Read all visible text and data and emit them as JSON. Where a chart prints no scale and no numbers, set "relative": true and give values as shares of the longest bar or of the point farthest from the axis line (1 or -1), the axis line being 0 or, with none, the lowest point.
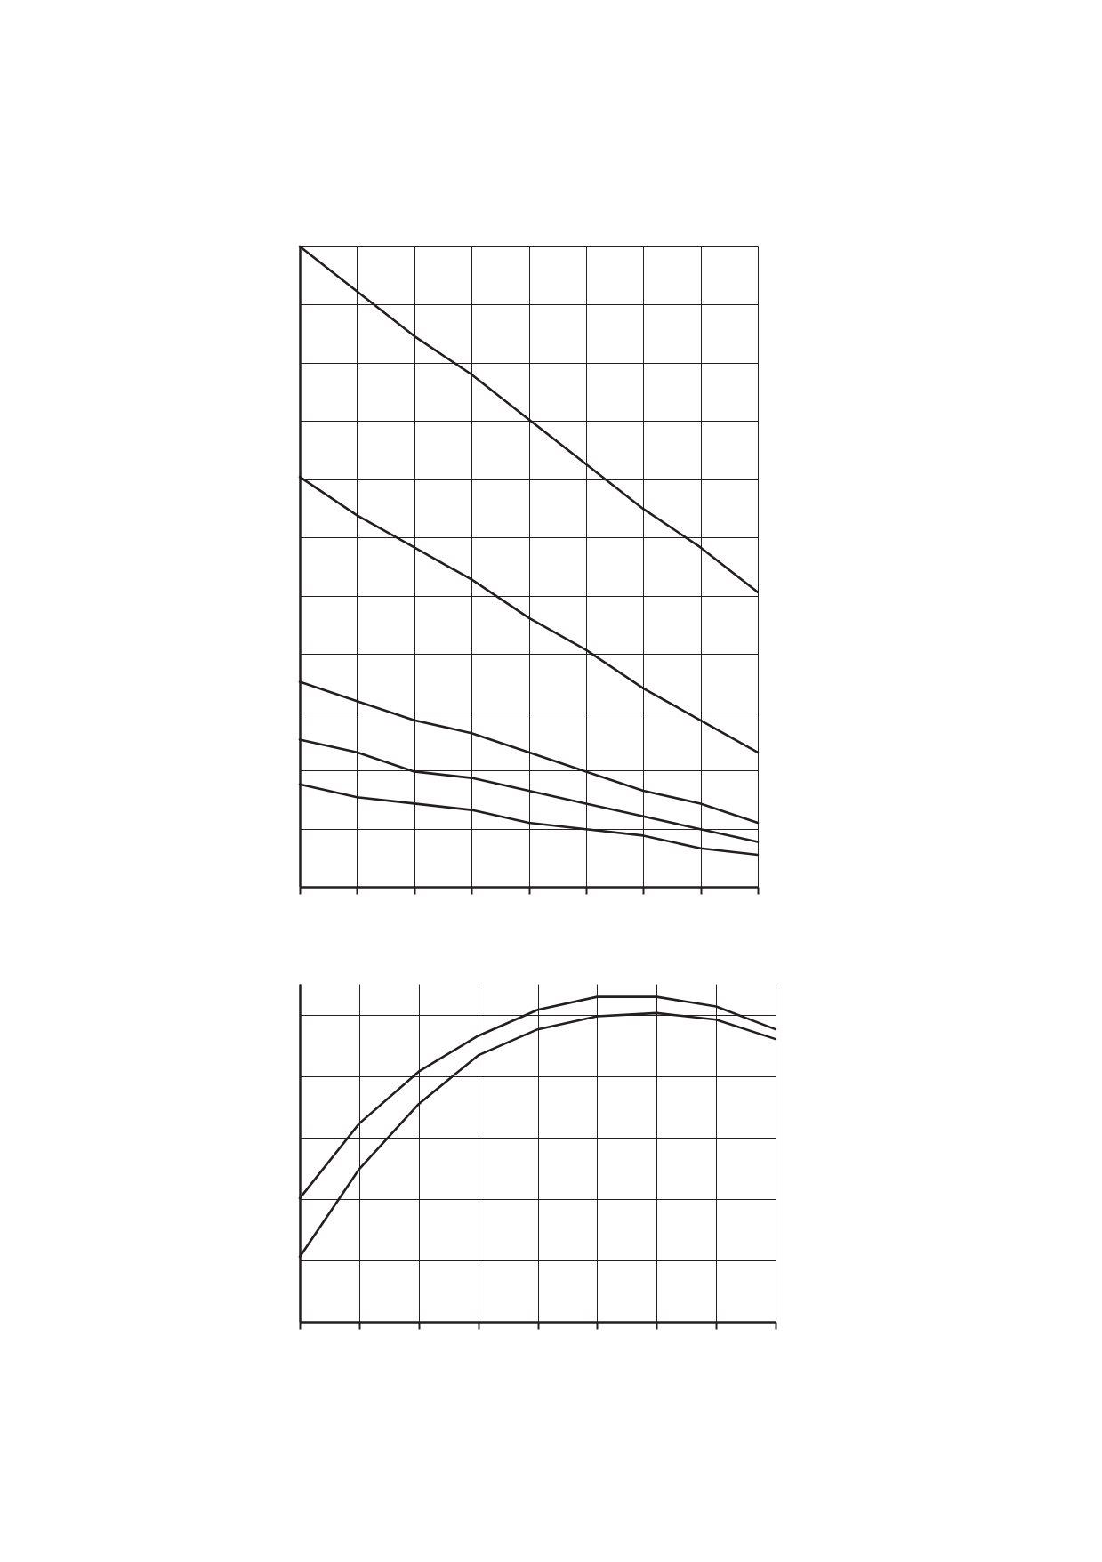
{
  "chart_data": [
    {
      "type": "line",
      "relative": true,
      "grid": true,
      "legend": false,
      "marker": "none",
      "line_style": "solid",
      "categories": [
        null,
        null,
        null,
        null,
        null,
        null,
        null,
        null,
        null
      ],
      "series": [
        {
          "color": "#231f20",
          "values": [
            1,
            0.93,
            0.86,
            0.8,
            0.73,
            0.66,
            0.59,
            0.53,
            0.46
          ]
        },
        {
          "color": "#231f20",
          "values": [
            0.64,
            0.58,
            0.53,
            0.48,
            0.42,
            0.37,
            0.31,
            0.26,
            0.21
          ]
        },
        {
          "color": "#231f20",
          "values": [
            0.32,
            0.29,
            0.26,
            0.24,
            0.21,
            0.18,
            0.15,
            0.13,
            0.1
          ]
        },
        {
          "color": "#231f20",
          "values": [
            0.23,
            0.21,
            0.18,
            0.17,
            0.15,
            0.13,
            0.11,
            0.09,
            0.07
          ]
        },
        {
          "color": "#231f20",
          "values": [
            0.16,
            0.14,
            0.13,
            0.12,
            0.1,
            0.09,
            0.08,
            0.06,
            0.05
          ]
        }
      ]
    },
    {
      "type": "line",
      "relative": true,
      "grid": true,
      "legend": false,
      "marker": "none",
      "line_style": "solid",
      "categories": [
        null,
        null,
        null,
        null,
        null,
        null,
        null,
        null,
        null
      ],
      "series": [
        {
          "color": "#231f20",
          "values": [
            0.38,
            0.61,
            0.77,
            0.88,
            0.96,
            1,
            1,
            0.97,
            0.9
          ]
        },
        {
          "color": "#231f20",
          "values": [
            0.2,
            0.47,
            0.67,
            0.82,
            0.9,
            0.94,
            0.95,
            0.93,
            0.87
          ]
        }
      ]
    }
  ]
}
